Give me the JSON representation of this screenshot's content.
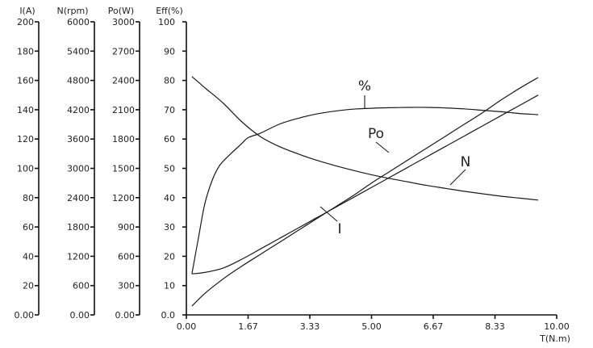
{
  "chart_data": {
    "type": "line",
    "x_axis": {
      "label": "T(N.m)",
      "range": [
        0,
        10
      ],
      "ticks": [
        "0.00",
        "1.67",
        "3.33",
        "5.00",
        "6.67",
        "8.33",
        "10.00"
      ]
    },
    "y_axes": [
      {
        "id": "I",
        "title": "I(A)",
        "range": [
          0,
          200
        ],
        "ticks": [
          "0.00",
          "20",
          "40",
          "60",
          "80",
          "100",
          "120",
          "140",
          "160",
          "180",
          "200"
        ]
      },
      {
        "id": "N",
        "title": "N(rpm)",
        "range": [
          0,
          6000
        ],
        "ticks": [
          "0.00",
          "600",
          "1200",
          "1800",
          "2400",
          "3000",
          "3600",
          "4200",
          "4800",
          "5400",
          "6000"
        ]
      },
      {
        "id": "Po",
        "title": "Po(W)",
        "range": [
          0,
          3000
        ],
        "ticks": [
          "0.00",
          "300",
          "600",
          "900",
          "1200",
          "1500",
          "1800",
          "2100",
          "2400",
          "2700",
          "3000"
        ]
      },
      {
        "id": "Eff",
        "title": "Eff(%)",
        "range": [
          0,
          100
        ],
        "ticks": [
          "0.0",
          "10",
          "20",
          "30",
          "40",
          "50",
          "60",
          "70",
          "80",
          "90",
          "100"
        ]
      }
    ],
    "grid": false,
    "series": [
      {
        "name": "%",
        "axis": "Eff",
        "points": [
          [
            0.15,
            14
          ],
          [
            0.35,
            28
          ],
          [
            0.5,
            38
          ],
          [
            0.7,
            46
          ],
          [
            0.9,
            51
          ],
          [
            1.2,
            55
          ],
          [
            1.5,
            58.5
          ],
          [
            1.67,
            60.5
          ],
          [
            2.0,
            62
          ],
          [
            2.5,
            65
          ],
          [
            3.0,
            67
          ],
          [
            3.5,
            68.5
          ],
          [
            4.0,
            69.5
          ],
          [
            4.5,
            70.2
          ],
          [
            5.0,
            70.5
          ],
          [
            5.5,
            70.7
          ],
          [
            6.0,
            70.8
          ],
          [
            6.5,
            70.8
          ],
          [
            7.0,
            70.6
          ],
          [
            7.5,
            70.3
          ],
          [
            8.0,
            69.8
          ],
          [
            8.5,
            69.3
          ],
          [
            9.0,
            68.7
          ],
          [
            9.5,
            68.3
          ]
        ]
      },
      {
        "name": "N",
        "axis": "N",
        "points": [
          [
            0.15,
            4880
          ],
          [
            0.5,
            4650
          ],
          [
            1.0,
            4330
          ],
          [
            1.5,
            3950
          ],
          [
            2.0,
            3650
          ],
          [
            2.5,
            3450
          ],
          [
            3.0,
            3300
          ],
          [
            3.5,
            3170
          ],
          [
            4.0,
            3060
          ],
          [
            4.5,
            2960
          ],
          [
            5.0,
            2870
          ],
          [
            5.5,
            2790
          ],
          [
            6.0,
            2720
          ],
          [
            6.5,
            2650
          ],
          [
            7.0,
            2590
          ],
          [
            7.5,
            2530
          ],
          [
            8.0,
            2480
          ],
          [
            8.5,
            2430
          ],
          [
            9.0,
            2390
          ],
          [
            9.5,
            2350
          ]
        ]
      },
      {
        "name": "Po",
        "axis": "Po",
        "points": [
          [
            0.15,
            90
          ],
          [
            0.5,
            220
          ],
          [
            1.0,
            370
          ],
          [
            1.5,
            500
          ],
          [
            2.0,
            620
          ],
          [
            2.5,
            740
          ],
          [
            3.0,
            860
          ],
          [
            3.5,
            980
          ],
          [
            4.0,
            1100
          ],
          [
            4.5,
            1220
          ],
          [
            5.0,
            1350
          ],
          [
            5.5,
            1470
          ],
          [
            6.0,
            1590
          ],
          [
            6.5,
            1710
          ],
          [
            7.0,
            1830
          ],
          [
            7.5,
            1950
          ],
          [
            8.0,
            2070
          ],
          [
            8.5,
            2200
          ],
          [
            9.0,
            2320
          ],
          [
            9.5,
            2430
          ]
        ]
      },
      {
        "name": "I",
        "axis": "I",
        "points": [
          [
            0.15,
            28
          ],
          [
            0.5,
            29
          ],
          [
            1.0,
            32
          ],
          [
            1.5,
            38
          ],
          [
            2.0,
            45
          ],
          [
            2.5,
            52
          ],
          [
            3.0,
            59
          ],
          [
            3.5,
            66
          ],
          [
            4.0,
            73
          ],
          [
            4.5,
            80
          ],
          [
            5.0,
            87
          ],
          [
            5.5,
            94
          ],
          [
            6.0,
            101
          ],
          [
            6.5,
            108
          ],
          [
            7.0,
            115
          ],
          [
            7.5,
            122
          ],
          [
            8.0,
            129
          ],
          [
            8.5,
            136
          ],
          [
            9.0,
            143
          ],
          [
            9.5,
            150
          ]
        ]
      }
    ],
    "labels": [
      {
        "text": "%",
        "series": "%"
      },
      {
        "text": "Po",
        "series": "Po"
      },
      {
        "text": "N",
        "series": "N"
      },
      {
        "text": "I",
        "series": "I"
      }
    ]
  }
}
